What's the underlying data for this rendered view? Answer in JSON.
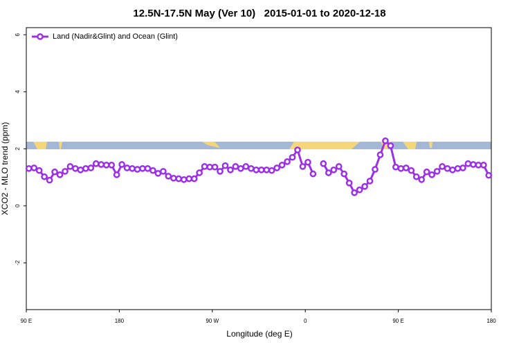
{
  "chart_data": {
    "type": "line",
    "title": "12.5N-17.5N May (Ver 10)   2015-01-01 to 2020-12-18",
    "x_label": "Longitude (deg E)",
    "y_label": "XCO2 - MLO trend (ppm)",
    "xlim": [
      90,
      540
    ],
    "ylim": [
      -3.64,
      6.25
    ],
    "xticks": [
      {
        "value": 90,
        "label": "90 E"
      },
      180,
      {
        "value": 270,
        "label": "90 W"
      },
      {
        "value": 360,
        "label": "0"
      },
      {
        "value": 450,
        "label": "90 E"
      },
      {
        "value": 540,
        "label": "180"
      }
    ],
    "yticks": [
      -2,
      0,
      2,
      4,
      6
    ],
    "legend": "top-left",
    "x": [
      92.5,
      97.5,
      102.5,
      107.5,
      112.5,
      117.5,
      122.5,
      127.5,
      132.5,
      137.5,
      142.5,
      147.5,
      152.5,
      157.5,
      162.5,
      167.5,
      172.5,
      177.5,
      182.5,
      187.5,
      192.5,
      197.5,
      202.5,
      207.5,
      212.5,
      217.5,
      222.5,
      227.5,
      232.5,
      237.5,
      242.5,
      247.5,
      252.5,
      257.5,
      262.5,
      267.5,
      272.5,
      277.5,
      282.5,
      287.5,
      292.5,
      297.5,
      302.5,
      307.5,
      312.5,
      317.5,
      322.5,
      327.5,
      332.5,
      337.5,
      342.5,
      347.5,
      352.5,
      357.5,
      362.5,
      367.5,
      372.5,
      377.5,
      382.5,
      387.5,
      392.5,
      397.5,
      402.5,
      407.5,
      412.5,
      417.5,
      422.5,
      427.5,
      432.5,
      437.5,
      442.5,
      447.5,
      452.5,
      457.5,
      462.5,
      467.5,
      472.5,
      477.5,
      482.5,
      487.5,
      492.5,
      497.5,
      502.5,
      507.5,
      512.5,
      517.5,
      522.5,
      527.5,
      532.5,
      537.5
    ],
    "series": [
      {
        "name": "Land (Nadir&Glint) and Ocean (Glint)",
        "color": "#9b30e6",
        "values": [
          1.31,
          1.33,
          1.24,
          1.02,
          0.9,
          1.19,
          1.09,
          1.21,
          1.38,
          1.31,
          1.26,
          1.31,
          1.33,
          1.48,
          1.45,
          1.43,
          1.43,
          1.09,
          1.45,
          1.33,
          1.31,
          1.28,
          1.31,
          1.31,
          1.24,
          1.14,
          1.21,
          1.04,
          0.97,
          0.95,
          0.92,
          0.95,
          0.95,
          1.16,
          1.38,
          1.36,
          1.36,
          1.21,
          1.41,
          1.26,
          1.38,
          1.31,
          1.38,
          1.31,
          1.26,
          1.26,
          1.26,
          1.24,
          1.33,
          1.43,
          1.55,
          1.7,
          1.96,
          1.38,
          1.53,
          1.12,
          null,
          1.48,
          1.16,
          1.26,
          1.38,
          1.12,
          0.8,
          0.46,
          0.56,
          0.68,
          0.87,
          1.28,
          1.79,
          2.28,
          2.11,
          1.36,
          1.31,
          1.33,
          1.24,
          1.02,
          0.92,
          1.19,
          1.09,
          1.21,
          1.38,
          1.31,
          1.26,
          1.31,
          1.33,
          1.48,
          1.45,
          1.43,
          1.43,
          1.07
        ]
      }
    ]
  }
}
